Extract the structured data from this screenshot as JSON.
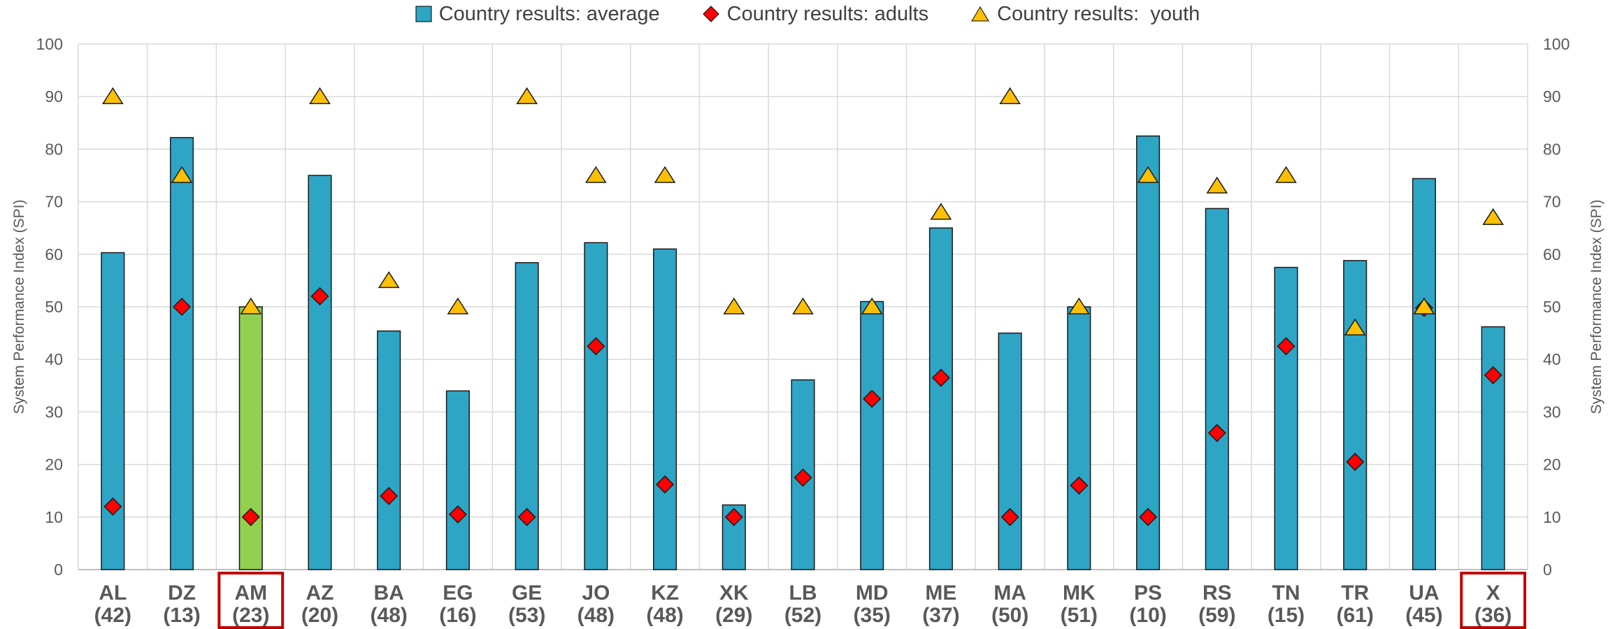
{
  "chart_data": {
    "type": "bar",
    "title": "",
    "xlabel": "",
    "ylabel": "System Performance Index (SPI)",
    "ylabel_right": "System Performance Index (SPI)",
    "ylim": [
      0,
      100
    ],
    "yticks": [
      0,
      10,
      20,
      30,
      40,
      50,
      60,
      70,
      80,
      90,
      100
    ],
    "grid": true,
    "legend_position": "top",
    "categories": [
      "AL",
      "DZ",
      "AM",
      "AZ",
      "BA",
      "EG",
      "GE",
      "JO",
      "KZ",
      "XK",
      "LB",
      "MD",
      "ME",
      "MA",
      "MK",
      "PS",
      "RS",
      "TN",
      "TR",
      "UA",
      "X"
    ],
    "category_counts": [
      "(42)",
      "(13)",
      "(23)",
      "(20)",
      "(48)",
      "(16)",
      "(53)",
      "(48)",
      "(48)",
      "(29)",
      "(52)",
      "(35)",
      "(37)",
      "(50)",
      "(51)",
      "(10)",
      "(59)",
      "(15)",
      "(61)",
      "(45)",
      "(36)"
    ],
    "highlighted_categories": [
      "AM",
      "X"
    ],
    "series": [
      {
        "name": "Country results: average",
        "kind": "bar",
        "values": [
          60.3,
          82.2,
          50,
          75,
          45.4,
          34,
          58.4,
          62.2,
          61,
          12.3,
          36.1,
          51,
          65,
          45,
          50,
          82.5,
          68.7,
          57.5,
          58.8,
          74.4,
          46.2
        ]
      },
      {
        "name": "Country results: adults",
        "kind": "diamond",
        "values": [
          12,
          50,
          10,
          52,
          14,
          10.5,
          10,
          42.5,
          16.2,
          10,
          17.5,
          32.5,
          36.5,
          10,
          16,
          10,
          26,
          42.5,
          20.5,
          49.8,
          37
        ]
      },
      {
        "name": "Country results:  youth",
        "kind": "triangle",
        "values": [
          90,
          75,
          50,
          90,
          55,
          50,
          90,
          75,
          75,
          50,
          50,
          50,
          68,
          90,
          50,
          75,
          73,
          75,
          46,
          50,
          67
        ]
      }
    ],
    "colors": {
      "bar": "#2ea5c5",
      "bar_highlight": "#92d050",
      "adults": "#ff0000",
      "youth": "#ffc000",
      "highlight_box": "#c00000",
      "grid": "#d9d9d9",
      "text": "#595959"
    }
  }
}
